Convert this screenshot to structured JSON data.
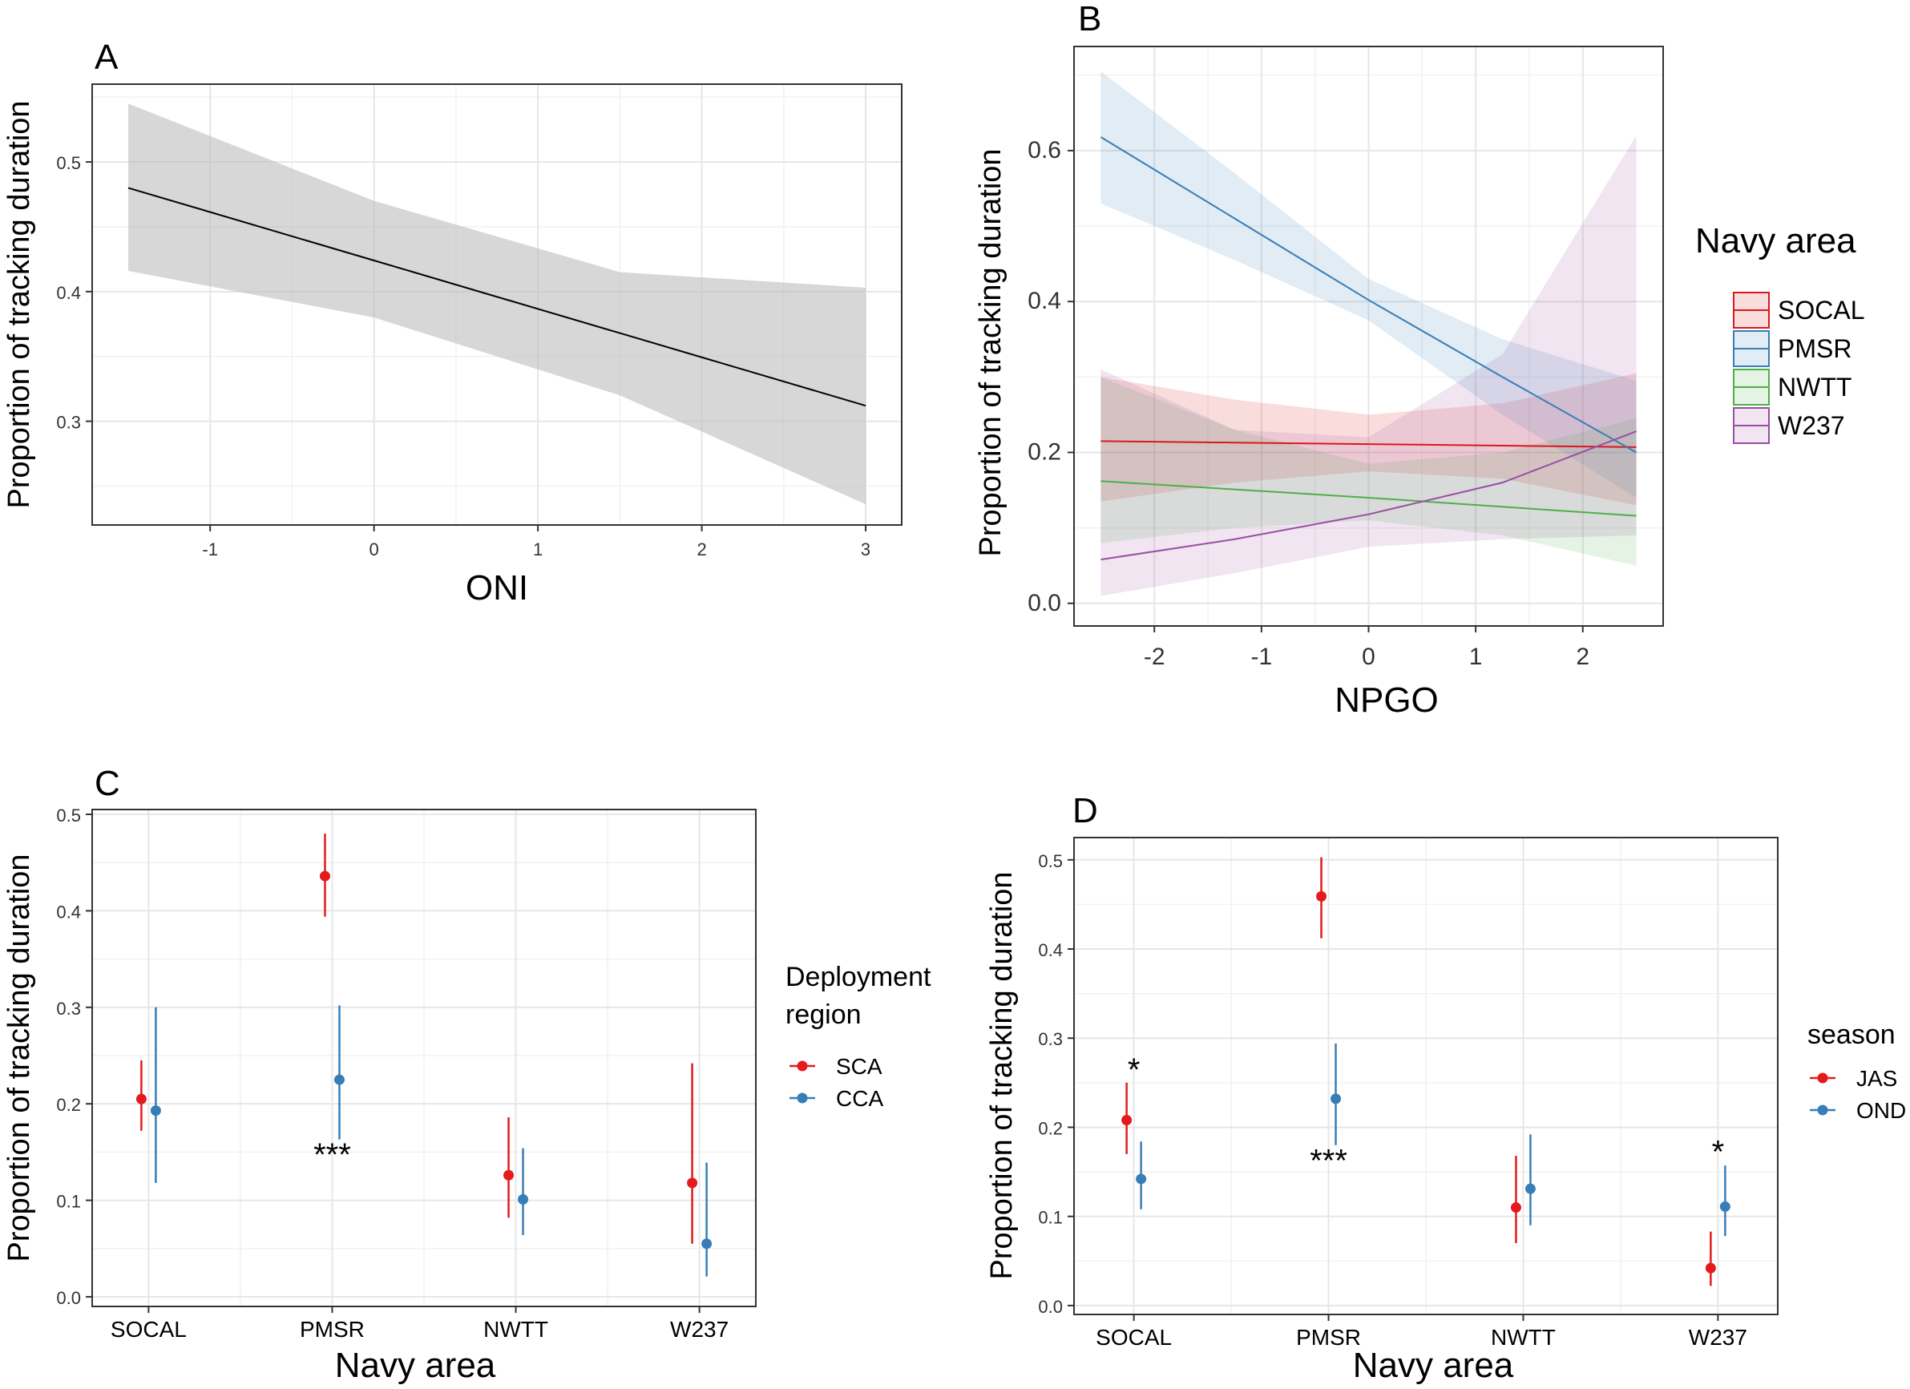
{
  "chart_data": [
    {
      "panel": "A",
      "type": "line",
      "title": "",
      "xlabel": "ONI",
      "ylabel": "Proportion of tracking duration",
      "xlim": [
        -1.72,
        3.22
      ],
      "ylim": [
        0.22,
        0.56
      ],
      "xticks": [
        -1,
        0,
        1,
        2,
        3
      ],
      "yticks": [
        0.3,
        0.4,
        0.5
      ],
      "ytick_labels": [
        "0.3",
        "0.4",
        "0.5"
      ],
      "grid": true,
      "series": [
        {
          "name": "fit",
          "color": "#000000",
          "band_color": "#bdbdbd",
          "x": [
            -1.5,
            0,
            1.5,
            3
          ],
          "y": [
            0.48,
            0.424,
            0.368,
            0.312
          ],
          "lower": [
            0.416,
            0.38,
            0.32,
            0.236
          ],
          "upper": [
            0.545,
            0.47,
            0.415,
            0.403
          ]
        }
      ]
    },
    {
      "panel": "B",
      "type": "line",
      "title": "",
      "xlabel": "NPGO",
      "ylabel": "Proportion of tracking duration",
      "xlim": [
        -2.75,
        2.75
      ],
      "ylim": [
        -0.03,
        0.738
      ],
      "xticks": [
        -2,
        -1,
        0,
        1,
        2
      ],
      "yticks": [
        0.0,
        0.2,
        0.4,
        0.6
      ],
      "ytick_labels": [
        "0.0",
        "0.2",
        "0.4",
        "0.6"
      ],
      "grid": true,
      "legend": {
        "title": "Navy area",
        "position": "right"
      },
      "series": [
        {
          "name": "SOCAL",
          "color": "#d7191c",
          "x": [
            -2.5,
            -1.25,
            0,
            1.25,
            2.5
          ],
          "y": [
            0.215,
            0.213,
            0.211,
            0.209,
            0.207
          ],
          "lower": [
            0.135,
            0.16,
            0.175,
            0.165,
            0.13
          ],
          "upper": [
            0.3,
            0.27,
            0.25,
            0.265,
            0.305
          ]
        },
        {
          "name": "PMSR",
          "color": "#377eb8",
          "x": [
            -2.5,
            -1.25,
            0,
            1.25,
            2.5
          ],
          "y": [
            0.618,
            0.51,
            0.402,
            0.3,
            0.2
          ],
          "lower": [
            0.53,
            0.455,
            0.375,
            0.25,
            0.14
          ],
          "upper": [
            0.705,
            0.57,
            0.43,
            0.35,
            0.295
          ]
        },
        {
          "name": "NWTT",
          "color": "#4daf4a",
          "x": [
            -2.5,
            -1.25,
            0,
            1.25,
            2.5
          ],
          "y": [
            0.162,
            0.151,
            0.14,
            0.128,
            0.116
          ],
          "lower": [
            0.08,
            0.1,
            0.11,
            0.09,
            0.05
          ],
          "upper": [
            0.3,
            0.23,
            0.185,
            0.2,
            0.245
          ]
        },
        {
          "name": "W237",
          "color": "#984ea3",
          "x": [
            -2.5,
            -1.25,
            0,
            1.25,
            2.5
          ],
          "y": [
            0.058,
            0.085,
            0.118,
            0.16,
            0.228
          ],
          "lower": [
            0.01,
            0.04,
            0.075,
            0.085,
            0.09
          ],
          "upper": [
            0.31,
            0.23,
            0.22,
            0.33,
            0.62
          ]
        }
      ]
    },
    {
      "panel": "C",
      "type": "scatter",
      "title": "",
      "xlabel": "Navy area",
      "ylabel": "Proportion of tracking duration",
      "categories": [
        "SOCAL",
        "PMSR",
        "NWTT",
        "W237"
      ],
      "ylim": [
        -0.01,
        0.505
      ],
      "yticks": [
        0.0,
        0.1,
        0.2,
        0.3,
        0.4,
        0.5
      ],
      "ytick_labels": [
        "0.0",
        "0.1",
        "0.2",
        "0.3",
        "0.4",
        "0.5"
      ],
      "grid": true,
      "legend": {
        "title_lines": [
          "Deployment",
          "region"
        ],
        "position": "right"
      },
      "series": [
        {
          "name": "SCA",
          "color": "#e41a1c",
          "values": [
            0.205,
            0.436,
            0.126,
            0.118
          ],
          "lower": [
            0.172,
            0.394,
            0.082,
            0.055
          ],
          "upper": [
            0.245,
            0.48,
            0.186,
            0.242
          ]
        },
        {
          "name": "CCA",
          "color": "#377eb8",
          "values": [
            0.193,
            0.225,
            0.101,
            0.055
          ],
          "lower": [
            0.118,
            0.163,
            0.064,
            0.021
          ],
          "upper": [
            0.3,
            0.302,
            0.154,
            0.139
          ]
        }
      ],
      "annotations": [
        {
          "text": "***",
          "category": "PMSR",
          "y": 0.148
        }
      ]
    },
    {
      "panel": "D",
      "type": "scatter",
      "title": "",
      "xlabel": "Navy area",
      "ylabel": "Proportion of tracking duration",
      "categories": [
        "SOCAL",
        "PMSR",
        "NWTT",
        "W237"
      ],
      "ylim": [
        -0.01,
        0.525
      ],
      "yticks": [
        0.0,
        0.1,
        0.2,
        0.3,
        0.4,
        0.5
      ],
      "ytick_labels": [
        "0.0",
        "0.1",
        "0.2",
        "0.3",
        "0.4",
        "0.5"
      ],
      "grid": true,
      "legend": {
        "title": "season",
        "position": "right"
      },
      "series": [
        {
          "name": "JAS",
          "color": "#e41a1c",
          "values": [
            0.208,
            0.459,
            0.11,
            0.042
          ],
          "lower": [
            0.17,
            0.412,
            0.07,
            0.022
          ],
          "upper": [
            0.25,
            0.503,
            0.168,
            0.083
          ]
        },
        {
          "name": "OND",
          "color": "#377eb8",
          "values": [
            0.142,
            0.232,
            0.131,
            0.111
          ],
          "lower": [
            0.108,
            0.18,
            0.09,
            0.078
          ],
          "upper": [
            0.184,
            0.294,
            0.192,
            0.157
          ]
        }
      ],
      "annotations": [
        {
          "text": "*",
          "category": "SOCAL",
          "y": 0.265
        },
        {
          "text": "***",
          "category": "PMSR",
          "y": 0.163
        },
        {
          "text": "*",
          "category": "W237",
          "y": 0.173
        }
      ]
    }
  ]
}
